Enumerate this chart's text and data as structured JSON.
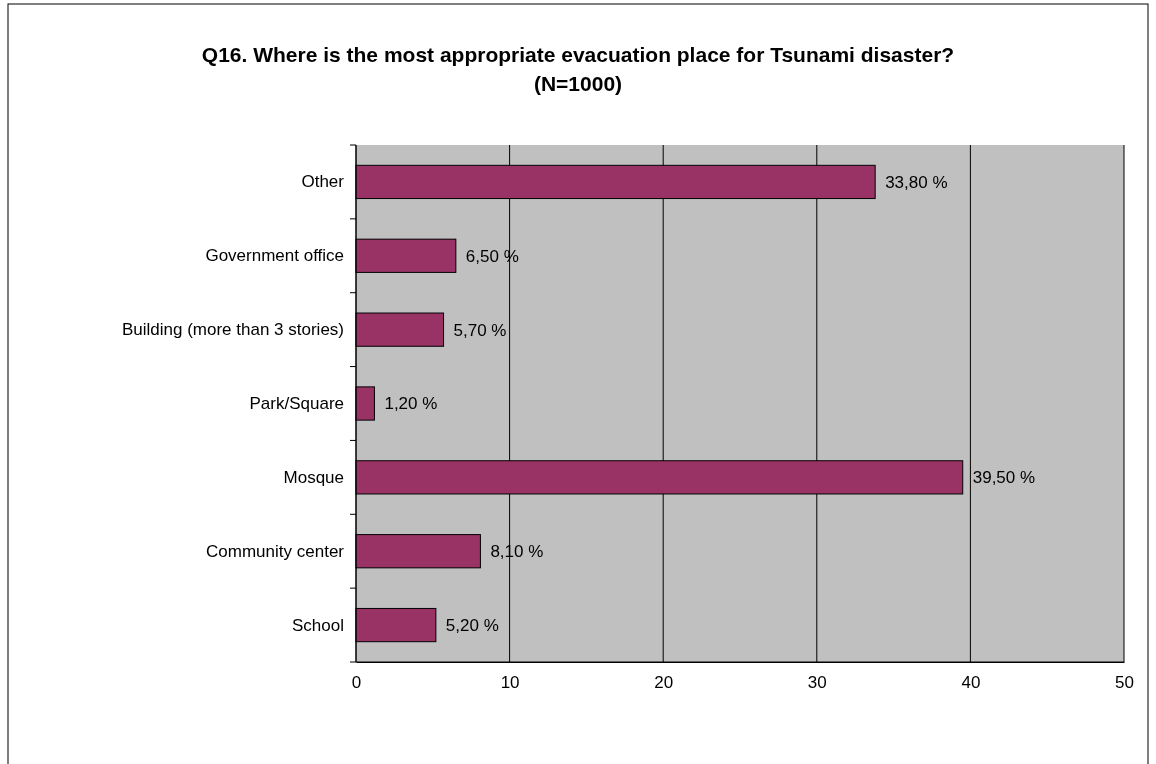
{
  "chart_data": {
    "type": "bar",
    "orientation": "horizontal",
    "title": "Q16. Where is the most appropriate evacuation place for Tsunami disaster? (N=1000)",
    "categories": [
      "Other",
      "Government office",
      "Building (more than 3 stories)",
      "Park/Square",
      "Mosque",
      "Community center",
      "School"
    ],
    "values": [
      33.8,
      6.5,
      5.7,
      1.2,
      39.5,
      8.1,
      5.2
    ],
    "value_labels": [
      "33,80 %",
      "6,50 %",
      "5,70 %",
      "1,20 %",
      "39,50 %",
      "8,10 %",
      "5,20 %"
    ],
    "color": "#993366",
    "xlim": [
      0,
      50
    ],
    "xticks": [
      0,
      10,
      20,
      30,
      40,
      50
    ],
    "grid": "x"
  }
}
